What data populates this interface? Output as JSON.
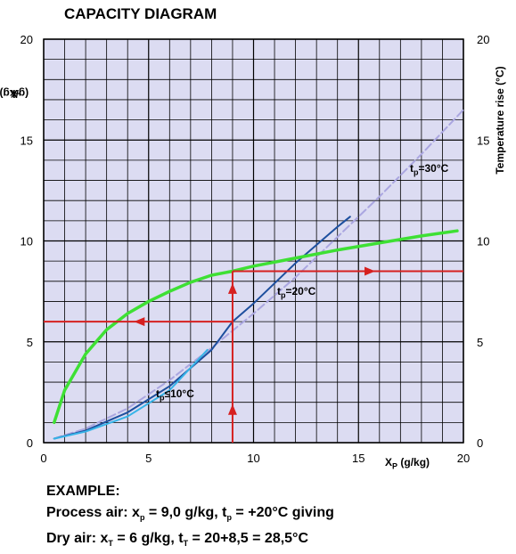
{
  "chart_data": {
    "type": "line",
    "title": "CAPACITY DIAGRAM",
    "ylabel_main": "X",
    "ylabel_sub": "T",
    "ylabel_unit": " (g/kg)",
    "y2label": "Temperature rise (°C)",
    "xlabel_main": "X",
    "xlabel_sub": "P",
    "xlabel_unit": " (g/kg)",
    "xlim": [
      0,
      20
    ],
    "ylim": [
      0,
      20
    ],
    "y2lim": [
      0,
      20
    ],
    "grid": true,
    "xticks": [
      "0",
      "5",
      "10",
      "15",
      "20"
    ],
    "yticks": [
      "0",
      "5",
      "10",
      "15",
      "20"
    ],
    "y2ticks": [
      "0",
      "5",
      "10",
      "15",
      "20"
    ],
    "annotations": {
      "t30_main": "t",
      "t30_sub": "p",
      "t30_rest": "=30°C",
      "t20_main": "t",
      "t20_sub": "p",
      "t20_rest": "=20°C",
      "t10_main": "t",
      "t10_sub": "p",
      "t10_rest": "≤10°C"
    },
    "series": [
      {
        "key": "t30",
        "color": "#aaa6e0",
        "dashed": true,
        "x": [
          0.5,
          2,
          4,
          6,
          8,
          10,
          12,
          14,
          16,
          18,
          20
        ],
        "y": [
          0.2,
          0.7,
          1.7,
          3.1,
          4.7,
          6.4,
          8.2,
          10.2,
          12.2,
          14.3,
          16.5
        ]
      },
      {
        "key": "t20",
        "color": "#1d4f9e",
        "x": [
          0.5,
          2,
          4,
          6,
          8,
          9,
          10,
          12,
          14,
          14.6
        ],
        "y": [
          0.2,
          0.6,
          1.5,
          2.8,
          4.6,
          6.0,
          6.9,
          8.9,
          10.7,
          11.2
        ]
      },
      {
        "key": "t10",
        "color": "#36b4e8",
        "x": [
          0.5,
          2,
          4,
          6,
          7.8
        ],
        "y": [
          0.2,
          0.55,
          1.3,
          2.6,
          4.6
        ]
      },
      {
        "key": "temp_rise",
        "color": "#3ee034",
        "x": [
          0.5,
          1,
          2,
          3,
          4,
          5,
          6,
          7,
          8,
          9,
          10,
          12,
          14,
          16,
          18,
          19.7
        ],
        "y": [
          1.0,
          2.6,
          4.4,
          5.6,
          6.4,
          7.0,
          7.5,
          7.95,
          8.3,
          8.5,
          8.75,
          9.15,
          9.55,
          9.9,
          10.25,
          10.5
        ]
      }
    ],
    "example_lines": [
      {
        "x": [
          9,
          9
        ],
        "y": [
          0,
          8.5
        ],
        "color": "#d62020"
      },
      {
        "x": [
          9,
          20
        ],
        "y": [
          8.5,
          8.5
        ],
        "color": "#d62020"
      },
      {
        "x": [
          9,
          0
        ],
        "y": [
          6,
          6
        ],
        "color": "#d62020"
      }
    ],
    "arrows": [
      {
        "x": 9,
        "y": 1.6,
        "dir": "up"
      },
      {
        "x": 9,
        "y": 7.6,
        "dir": "up"
      },
      {
        "x": 15.5,
        "y": 8.5,
        "dir": "right"
      },
      {
        "x": 4.6,
        "y": 6,
        "dir": "left"
      }
    ]
  },
  "example": {
    "heading": "EXAMPLE:",
    "line1": "Process air: x",
    "line1_sub": "p",
    "line1_mid": " = 9,0 g/kg, t",
    "line1_sub2": "p",
    "line1_end": " = +20°C giving",
    "line2": "Dry air: x",
    "line2_sub": "T",
    "line2_mid": " = 6 g/kg, t",
    "line2_sub2": "T",
    "line2_end": " = 20+8,5 = 28,5°C"
  }
}
